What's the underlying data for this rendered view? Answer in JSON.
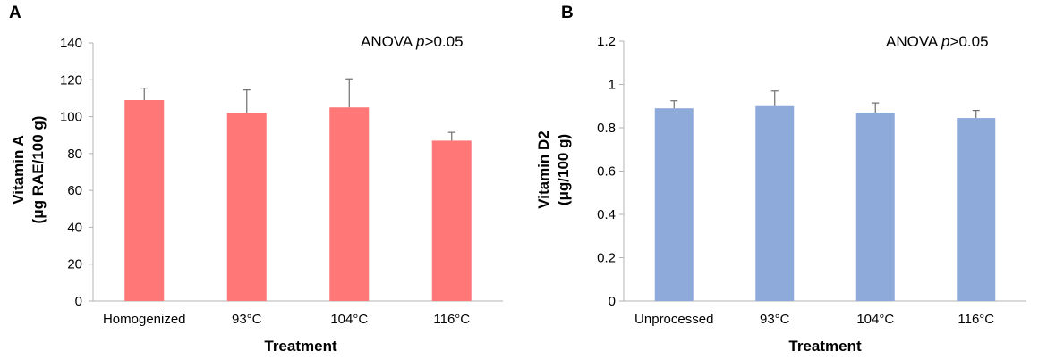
{
  "chart_data": [
    {
      "panel": "A",
      "type": "bar",
      "categories": [
        "Homogenized",
        "93°C",
        "104°C",
        "116°C"
      ],
      "values": [
        109,
        102,
        105,
        87
      ],
      "errors": [
        6.5,
        12.5,
        15.5,
        4.5
      ],
      "xlabel": "Treatment",
      "ylabel_line1": "Vitamin A",
      "ylabel_line2": "(μg RAE/100 g)",
      "ylim": [
        0,
        140
      ],
      "yticks": [
        0,
        20,
        40,
        60,
        80,
        100,
        120,
        140
      ],
      "ytick_labels": [
        "0",
        "20",
        "40",
        "60",
        "80",
        "100",
        "120",
        "140"
      ],
      "annotation_prefix": "ANOVA ",
      "annotation_italic": "p",
      "annotation_suffix": ">0.05",
      "color": "#ff7777"
    },
    {
      "panel": "B",
      "type": "bar",
      "categories": [
        "Unprocessed",
        "93°C",
        "104°C",
        "116°C"
      ],
      "values": [
        0.89,
        0.9,
        0.87,
        0.845
      ],
      "errors": [
        0.035,
        0.07,
        0.045,
        0.035
      ],
      "xlabel": "Treatment",
      "ylabel_line1": "Vitamin D2",
      "ylabel_line2": "(μg/100 g)",
      "ylim": [
        0,
        1.2
      ],
      "yticks": [
        0,
        0.2,
        0.4,
        0.6,
        0.8,
        1,
        1.2
      ],
      "ytick_labels": [
        "0",
        "0.2",
        "0.4",
        "0.6",
        "0.8",
        "1",
        "1.2"
      ],
      "annotation_prefix": "ANOVA ",
      "annotation_italic": "p",
      "annotation_suffix": ">0.05",
      "color": "#8eaadb"
    }
  ]
}
